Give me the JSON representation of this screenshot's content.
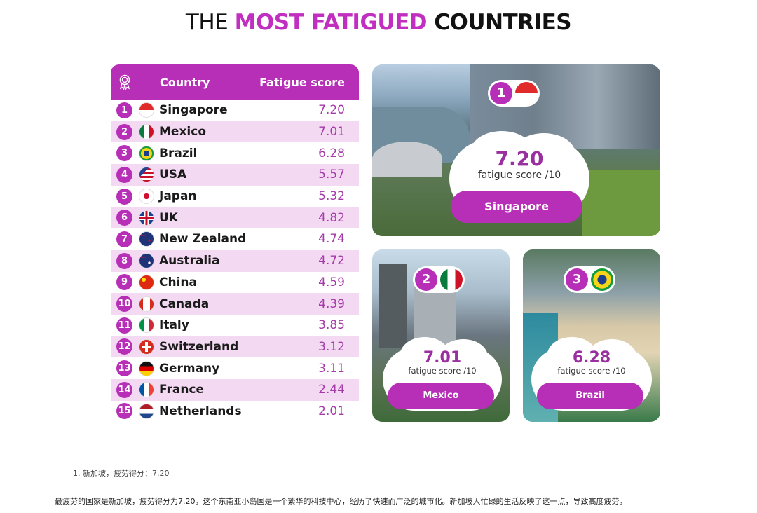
{
  "title": {
    "part1": "THE ",
    "part2": "MOST FATIGUED",
    "part3": " COUNTRIES"
  },
  "table": {
    "header_country": "Country",
    "header_score": "Fatigue score",
    "rows": [
      {
        "rank": "1",
        "country": "Singapore",
        "score": "7.20",
        "flag": "singapore"
      },
      {
        "rank": "2",
        "country": "Mexico",
        "score": "7.01",
        "flag": "mexico"
      },
      {
        "rank": "3",
        "country": "Brazil",
        "score": "6.28",
        "flag": "brazil"
      },
      {
        "rank": "4",
        "country": "USA",
        "score": "5.57",
        "flag": "usa"
      },
      {
        "rank": "5",
        "country": "Japan",
        "score": "5.32",
        "flag": "japan"
      },
      {
        "rank": "6",
        "country": "UK",
        "score": "4.82",
        "flag": "uk"
      },
      {
        "rank": "7",
        "country": "New Zealand",
        "score": "4.74",
        "flag": "new-zealand"
      },
      {
        "rank": "8",
        "country": "Australia",
        "score": "4.72",
        "flag": "australia"
      },
      {
        "rank": "9",
        "country": "China",
        "score": "4.59",
        "flag": "china"
      },
      {
        "rank": "10",
        "country": "Canada",
        "score": "4.39",
        "flag": "canada"
      },
      {
        "rank": "11",
        "country": "Italy",
        "score": "3.85",
        "flag": "italy"
      },
      {
        "rank": "12",
        "country": "Switzerland",
        "score": "3.12",
        "flag": "switzerland"
      },
      {
        "rank": "13",
        "country": "Germany",
        "score": "3.11",
        "flag": "germany"
      },
      {
        "rank": "14",
        "country": "France",
        "score": "2.44",
        "flag": "france"
      },
      {
        "rank": "15",
        "country": "Netherlands",
        "score": "2.01",
        "flag": "netherlands"
      }
    ]
  },
  "cards": [
    {
      "rank": "1",
      "score": "7.20",
      "label": "fatigue score /10",
      "country": "Singapore"
    },
    {
      "rank": "2",
      "score": "7.01",
      "label": "fatigue score /10",
      "country": "Mexico"
    },
    {
      "rank": "3",
      "score": "6.28",
      "label": "fatigue score /10",
      "country": "Brazil"
    }
  ],
  "footnote": "1. 新加坡，疲劳得分：7.20",
  "paragraph": "最疲劳的国家是新加坡，疲劳得分为7.20。这个东南亚小岛国是一个繁华的科技中心，经历了快速而广泛的城市化。新加坡人忙碌的生活反映了这一点，导致高度疲劳。",
  "colors": {
    "accent": "#b62fb6",
    "row_alt": "#f4d9f3",
    "score": "#a53aa9"
  }
}
